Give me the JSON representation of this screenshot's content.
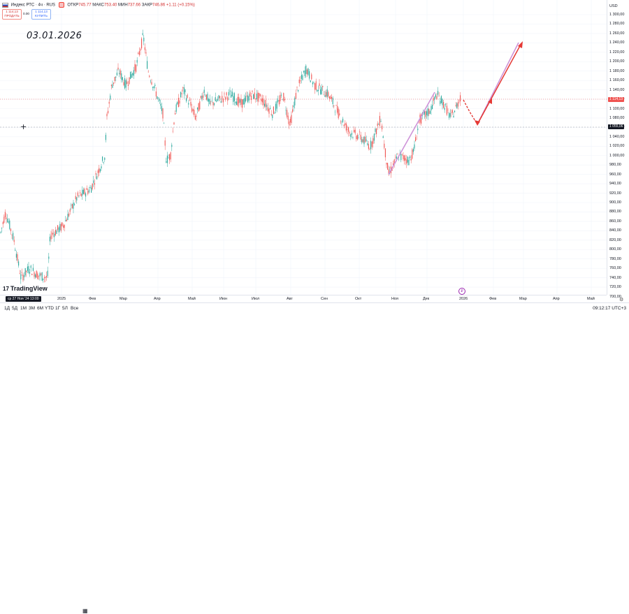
{
  "legend": {
    "symbol": "Индекс РТС · 4ч · RUS",
    "open_label": "ОТКР",
    "open": "745.77",
    "high_label": "МАКС",
    "high": "753.40",
    "low_label": "МИН",
    "low": "737.66",
    "close_label": "ЗАКР",
    "close": "746.86",
    "change": "+1.11 (+0.15%)"
  },
  "trade": {
    "sell_price": "1 114,13",
    "sell_label": "ПРОДАТЬ",
    "spread": "0.00",
    "buy_price": "1 114,13",
    "buy_label": "КУПИТЬ"
  },
  "annotation": "03.01.2026",
  "price_scale": {
    "currency": "USD",
    "ticks": [
      "1 300,00",
      "1 280,00",
      "1 260,00",
      "1 240,00",
      "1 220,00",
      "1 200,00",
      "1 180,00",
      "1 160,00",
      "1 140,00",
      "1 120,00",
      "1 100,00",
      "1 080,00",
      "1 060,00",
      "1 040,00",
      "1 020,00",
      "1 000,00",
      "980,00",
      "960,00",
      "940,00",
      "920,00",
      "900,00",
      "880,00",
      "860,00",
      "840,00",
      "820,00",
      "800,00",
      "780,00",
      "760,00",
      "740,00",
      "720,00",
      "700,00"
    ],
    "last_price_badge": "1 114,13",
    "crosshair_badge": "1 055,06"
  },
  "time_axis": [
    "2025",
    "Фев",
    "Мар",
    "Апр",
    "Май",
    "Июн",
    "Июл",
    "Авг",
    "Сен",
    "Окт",
    "Ноя",
    "Дек",
    "2026",
    "Фев",
    "Мар",
    "Апр",
    "Май"
  ],
  "cursor_time": "ср 27 Ноя '24   13:00",
  "ranges": [
    "1Д",
    "5Д",
    "1М",
    "3М",
    "6М",
    "YTD",
    "1Г",
    "5Л",
    "Все"
  ],
  "clock": "09:12:17 UTC+3",
  "logo": "TradingView",
  "colors": {
    "up": "#26a69a",
    "down": "#ef5350",
    "projection": "#e53935",
    "trendline": "#ce93d8"
  },
  "chart_data": {
    "type": "line",
    "x_label": "",
    "y_label": "",
    "ylim": [
      700,
      1300
    ],
    "x": [
      "2025-01-01",
      "2025-02-01",
      "2025-03-01",
      "2025-04-01",
      "2025-05-01",
      "2025-06-01",
      "2025-07-01",
      "2025-08-01",
      "2025-09-01",
      "2025-10-01",
      "2025-11-01",
      "2025-12-01",
      "2026-01-01"
    ],
    "series": [
      {
        "values": [
          745,
          930,
          1255,
          985,
          1120,
          1110,
          1125,
          1180,
          1090,
          1040,
          1010,
          1100,
          1110
        ]
      }
    ],
    "projection": [
      1105,
      1065,
      1105,
      1245
    ],
    "trendline_start": [
      960,
      1135
    ]
  }
}
